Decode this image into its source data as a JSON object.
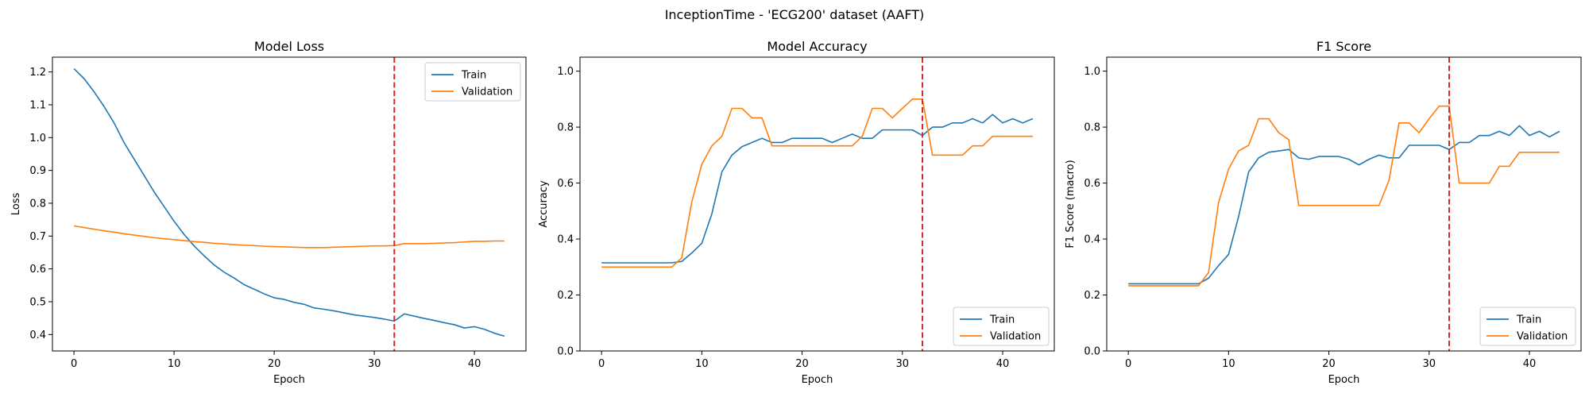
{
  "suptitle": "InceptionTime - 'ECG200' dataset (AAFT)",
  "colors": {
    "train": "#1f77b4",
    "validation": "#ff7f0e",
    "marker": "#d62728"
  },
  "chart_data": [
    {
      "type": "line",
      "title": "Model Loss",
      "xlabel": "Epoch",
      "ylabel": "Loss",
      "xlim": [
        -2.15,
        45.15
      ],
      "ylim": [
        0.35,
        1.245
      ],
      "xticks": [
        0,
        10,
        20,
        30,
        40
      ],
      "yticks": [
        0.4,
        0.5,
        0.6,
        0.7,
        0.8,
        0.9,
        1.0,
        1.1,
        1.2
      ],
      "ytick_labels": [
        "0.4",
        "0.5",
        "0.6",
        "0.7",
        "0.8",
        "0.9",
        "1.0",
        "1.1",
        "1.2"
      ],
      "vline": 32,
      "legend_position": "upper right",
      "series": [
        {
          "name": "Train",
          "values": [
            1.21,
            1.18,
            1.14,
            1.095,
            1.045,
            0.985,
            0.935,
            0.885,
            0.835,
            0.79,
            0.745,
            0.705,
            0.67,
            0.64,
            0.612,
            0.59,
            0.572,
            0.552,
            0.538,
            0.524,
            0.512,
            0.507,
            0.498,
            0.492,
            0.481,
            0.477,
            0.472,
            0.466,
            0.46,
            0.456,
            0.452,
            0.447,
            0.441,
            0.463,
            0.456,
            0.449,
            0.443,
            0.436,
            0.43,
            0.42,
            0.424,
            0.416,
            0.404,
            0.395
          ]
        },
        {
          "name": "Validation",
          "values": [
            0.731,
            0.726,
            0.721,
            0.716,
            0.712,
            0.707,
            0.703,
            0.699,
            0.695,
            0.692,
            0.689,
            0.686,
            0.683,
            0.681,
            0.678,
            0.676,
            0.674,
            0.672,
            0.671,
            0.669,
            0.668,
            0.667,
            0.666,
            0.665,
            0.665,
            0.665,
            0.666,
            0.667,
            0.668,
            0.669,
            0.67,
            0.67,
            0.671,
            0.677,
            0.677,
            0.677,
            0.678,
            0.679,
            0.68,
            0.682,
            0.684,
            0.684,
            0.685,
            0.685
          ]
        }
      ]
    },
    {
      "type": "line",
      "title": "Model Accuracy",
      "xlabel": "Epoch",
      "ylabel": "Accuracy",
      "xlim": [
        -2.15,
        45.15
      ],
      "ylim": [
        0.0,
        1.05
      ],
      "xticks": [
        0,
        10,
        20,
        30,
        40
      ],
      "yticks": [
        0.0,
        0.2,
        0.4,
        0.6,
        0.8,
        1.0
      ],
      "ytick_labels": [
        "0.0",
        "0.2",
        "0.4",
        "0.6",
        "0.8",
        "1.0"
      ],
      "vline": 32,
      "legend_position": "lower right",
      "series": [
        {
          "name": "Train",
          "values": [
            0.315,
            0.315,
            0.315,
            0.315,
            0.315,
            0.315,
            0.315,
            0.315,
            0.32,
            0.35,
            0.385,
            0.49,
            0.64,
            0.7,
            0.73,
            0.745,
            0.76,
            0.745,
            0.745,
            0.76,
            0.76,
            0.76,
            0.76,
            0.745,
            0.76,
            0.775,
            0.76,
            0.76,
            0.79,
            0.79,
            0.79,
            0.79,
            0.77,
            0.8,
            0.8,
            0.815,
            0.815,
            0.83,
            0.815,
            0.845,
            0.815,
            0.83,
            0.815,
            0.83
          ]
        },
        {
          "name": "Validation",
          "values": [
            0.3,
            0.3,
            0.3,
            0.3,
            0.3,
            0.3,
            0.3,
            0.3,
            0.333,
            0.533,
            0.667,
            0.733,
            0.767,
            0.867,
            0.867,
            0.833,
            0.833,
            0.733,
            0.733,
            0.733,
            0.733,
            0.733,
            0.733,
            0.733,
            0.733,
            0.733,
            0.767,
            0.867,
            0.867,
            0.833,
            0.867,
            0.9,
            0.9,
            0.7,
            0.7,
            0.7,
            0.7,
            0.733,
            0.733,
            0.767,
            0.767,
            0.767,
            0.767,
            0.767
          ]
        }
      ]
    },
    {
      "type": "line",
      "title": "F1 Score",
      "xlabel": "Epoch",
      "ylabel": "F1 Score (macro)",
      "xlim": [
        -2.15,
        45.15
      ],
      "ylim": [
        0.0,
        1.05
      ],
      "xticks": [
        0,
        10,
        20,
        30,
        40
      ],
      "yticks": [
        0.0,
        0.2,
        0.4,
        0.6,
        0.8,
        1.0
      ],
      "ytick_labels": [
        "0.0",
        "0.2",
        "0.4",
        "0.6",
        "0.8",
        "1.0"
      ],
      "vline": 32,
      "legend_position": "lower right",
      "series": [
        {
          "name": "Train",
          "values": [
            0.24,
            0.24,
            0.24,
            0.24,
            0.24,
            0.24,
            0.24,
            0.24,
            0.26,
            0.305,
            0.345,
            0.48,
            0.64,
            0.69,
            0.71,
            0.715,
            0.72,
            0.69,
            0.685,
            0.695,
            0.695,
            0.695,
            0.685,
            0.665,
            0.685,
            0.7,
            0.69,
            0.69,
            0.735,
            0.735,
            0.735,
            0.735,
            0.72,
            0.745,
            0.745,
            0.77,
            0.77,
            0.785,
            0.77,
            0.805,
            0.77,
            0.785,
            0.765,
            0.785
          ]
        },
        {
          "name": "Validation",
          "values": [
            0.233,
            0.233,
            0.233,
            0.233,
            0.233,
            0.233,
            0.233,
            0.233,
            0.28,
            0.53,
            0.65,
            0.715,
            0.735,
            0.83,
            0.83,
            0.78,
            0.755,
            0.52,
            0.52,
            0.52,
            0.52,
            0.52,
            0.52,
            0.52,
            0.52,
            0.52,
            0.61,
            0.815,
            0.815,
            0.78,
            0.83,
            0.875,
            0.875,
            0.6,
            0.6,
            0.6,
            0.6,
            0.66,
            0.66,
            0.71,
            0.71,
            0.71,
            0.71,
            0.71
          ]
        }
      ]
    }
  ]
}
